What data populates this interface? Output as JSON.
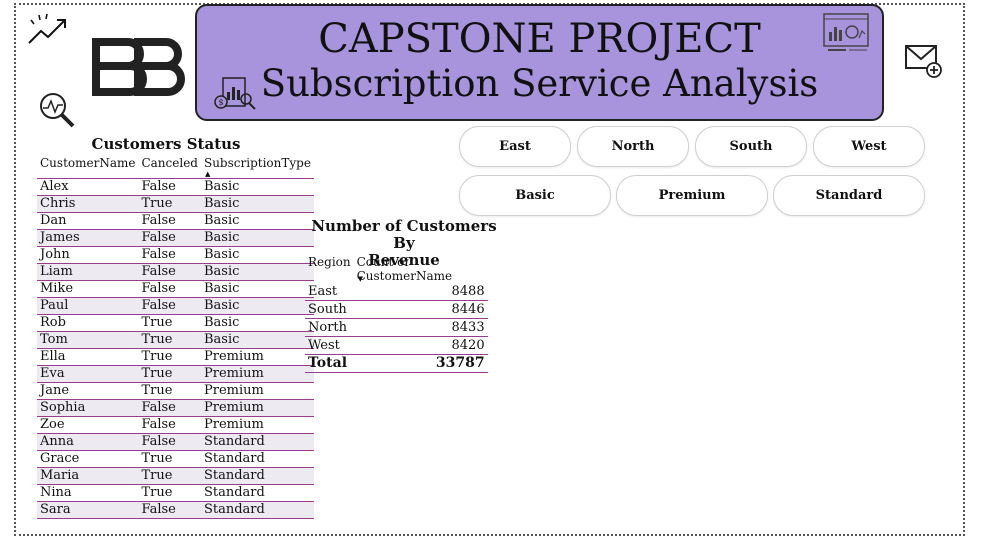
{
  "banner": {
    "title": "CAPSTONE PROJECT",
    "subtitle": "Subscription Service Analysis"
  },
  "icons": {
    "trend": "trend-up-icon",
    "logo": "bb-logo",
    "magnifier": "magnifier-chart-icon",
    "money_doc": "money-report-icon",
    "dashboard": "dashboard-monitor-icon",
    "mail": "mail-add-icon"
  },
  "customers": {
    "title": "Customers Status",
    "columns": [
      "CustomerName",
      "Canceled",
      "SubscriptionType"
    ],
    "sort_marker": "▲",
    "rows": [
      [
        "Alex",
        "False",
        "Basic"
      ],
      [
        "Chris",
        "True",
        "Basic"
      ],
      [
        "Dan",
        "False",
        "Basic"
      ],
      [
        "James",
        "False",
        "Basic"
      ],
      [
        "John",
        "False",
        "Basic"
      ],
      [
        "Liam",
        "False",
        "Basic"
      ],
      [
        "Mike",
        "False",
        "Basic"
      ],
      [
        "Paul",
        "False",
        "Basic"
      ],
      [
        "Rob",
        "True",
        "Basic"
      ],
      [
        "Tom",
        "True",
        "Basic"
      ],
      [
        "Ella",
        "True",
        "Premium"
      ],
      [
        "Eva",
        "True",
        "Premium"
      ],
      [
        "Jane",
        "True",
        "Premium"
      ],
      [
        "Sophia",
        "False",
        "Premium"
      ],
      [
        "Zoe",
        "False",
        "Premium"
      ],
      [
        "Anna",
        "False",
        "Standard"
      ],
      [
        "Grace",
        "True",
        "Standard"
      ],
      [
        "Maria",
        "True",
        "Standard"
      ],
      [
        "Nina",
        "True",
        "Standard"
      ],
      [
        "Sara",
        "False",
        "Standard"
      ]
    ]
  },
  "revenue": {
    "title_line1": "Number of Customers By",
    "title_line2": "Revenue",
    "columns": [
      "Region",
      "Count of CustomerName"
    ],
    "sort_marker": "▼",
    "rows": [
      [
        "East",
        "8488"
      ],
      [
        "South",
        "8446"
      ],
      [
        "North",
        "8433"
      ],
      [
        "West",
        "8420"
      ]
    ],
    "total_label": "Total",
    "total_value": "33787"
  },
  "region_slicer": [
    "East",
    "North",
    "South",
    "West"
  ],
  "subscription_slicer": [
    "Basic",
    "Premium",
    "Standard"
  ],
  "colors": {
    "banner": "#a894dc",
    "row_border": "#9a3b8f",
    "row_band": "#eeeaf2"
  }
}
